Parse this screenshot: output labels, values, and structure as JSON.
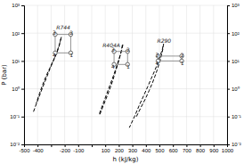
{
  "chart_data": {
    "type": "line",
    "xlabel": "h (kJ/kg)",
    "ylabel": "P (bar)",
    "log": "y",
    "grid": true,
    "xlim": [
      -500,
      1000
    ],
    "ylim": [
      0.01,
      1000
    ],
    "y2lim": [
      0.01,
      1000
    ],
    "xticks": [
      -500,
      -400,
      {
        "value": -300,
        "label": null
      },
      -200,
      -100,
      {
        "value": 0,
        "label": null
      },
      100,
      200,
      300,
      400,
      500,
      600,
      700,
      800,
      900,
      1000
    ],
    "yticks": [
      {
        "value": 0.01,
        "label": "10⁻²"
      },
      {
        "value": 0.1,
        "label": "10⁻¹"
      },
      {
        "value": 1.0,
        "label": "10⁰"
      },
      {
        "value": 10.0,
        "label": "10¹"
      },
      {
        "value": 100.0,
        "label": "10²"
      },
      {
        "value": 1000.0,
        "label": "10³"
      }
    ],
    "y2ticks": [
      {
        "value": 0.01,
        "label": "10⁻²"
      },
      {
        "value": 0.1,
        "label": "10⁻¹"
      },
      {
        "value": 1.0,
        "label": "10⁰"
      },
      {
        "value": 10.0,
        "label": "10¹"
      },
      {
        "value": 100.0,
        "label": "10²"
      },
      {
        "value": 1000.0,
        "label": "10³"
      }
    ],
    "series": [
      {
        "type": "line",
        "line_style": "dashed",
        "color": "#000000",
        "x": [
          -430,
          -410,
          -390,
          -370,
          -350,
          -330,
          -310,
          -290,
          -270,
          -255,
          -245,
          -237,
          -232,
          -228,
          -225,
          -224,
          -225,
          -228,
          -232,
          -238,
          -247,
          -258,
          -272,
          -290,
          -310,
          -335,
          -360,
          -385,
          -410
        ],
        "values": [
          0.15,
          0.28,
          0.5,
          0.9,
          1.6,
          2.8,
          5.0,
          8.5,
          14,
          21,
          30,
          40,
          52,
          63,
          72,
          74,
          70,
          62,
          52,
          41,
          30,
          21,
          14,
          9,
          5.5,
          3.0,
          1.5,
          0.7,
          0.3
        ]
      },
      {
        "type": "line",
        "line_style": "solid",
        "color": "#888888",
        "x": [
          -270,
          -270,
          -183,
          -155,
          -155,
          -270
        ],
        "values": [
          19.5,
          90,
          90,
          90,
          19.5,
          19.5
        ]
      },
      {
        "type": "scatter",
        "marker": "circle",
        "color": "#333333",
        "x": [
          -155,
          -155,
          -270,
          -270
        ],
        "values": [
          19.5,
          90,
          90,
          19.5
        ]
      },
      {
        "type": "line",
        "line_style": "dashed",
        "color": "#000000",
        "x": [
          60,
          90,
          120,
          145,
          165,
          182,
          196,
          207,
          215,
          220,
          224,
          227,
          229,
          230,
          229,
          226,
          221,
          214,
          205,
          193,
          178,
          160,
          138,
          113,
          85,
          55
        ],
        "values": [
          0.12,
          0.28,
          0.65,
          1.4,
          2.8,
          5.2,
          9.0,
          14,
          20,
          26,
          33,
          39,
          41,
          40,
          36,
          30,
          24,
          18,
          13,
          8.5,
          5.2,
          2.9,
          1.5,
          0.7,
          0.3,
          0.12
        ]
      },
      {
        "type": "line",
        "line_style": "solid",
        "color": "#888888",
        "x": [
          165,
          165,
          265,
          265,
          265,
          165
        ],
        "values": [
          7.5,
          22,
          22,
          22,
          7.5,
          7.5
        ]
      },
      {
        "type": "scatter",
        "marker": "circle",
        "color": "#333333",
        "x": [
          265,
          265,
          165,
          165
        ],
        "values": [
          7.5,
          22,
          22,
          7.5
        ]
      },
      {
        "type": "line",
        "line_style": "dashed",
        "color": "#000000",
        "x": [
          330,
          365,
          398,
          425,
          448,
          467,
          483,
          496,
          507,
          515,
          521,
          526,
          529,
          531,
          530,
          527,
          522,
          515,
          506,
          494,
          479,
          461,
          439,
          414,
          385,
          352,
          316,
          278
        ],
        "values": [
          0.1,
          0.22,
          0.45,
          0.88,
          1.6,
          2.8,
          4.7,
          7.5,
          11,
          16,
          21,
          28,
          35,
          41,
          40,
          34,
          27,
          21,
          15,
          10,
          6.5,
          4.0,
          2.3,
          1.2,
          0.58,
          0.26,
          0.1,
          0.04
        ]
      },
      {
        "type": "line",
        "line_style": "solid",
        "color": "#888888",
        "x": [
          490,
          490,
          620,
          665,
          665,
          490
        ],
        "values": [
          10,
          15,
          15,
          15,
          10,
          10
        ]
      },
      {
        "type": "scatter",
        "marker": "circle",
        "color": "#333333",
        "x": [
          665,
          665,
          490,
          490
        ],
        "values": [
          10,
          15,
          15,
          10
        ]
      }
    ],
    "annotations": [
      {
        "text": "1",
        "x": -151,
        "y": 16.575
      },
      {
        "text": "2",
        "x": -151,
        "y": 103.5
      },
      {
        "text": "3",
        "x": -277,
        "y": 103.5
      },
      {
        "text": "4",
        "x": -277,
        "y": 16.575
      },
      {
        "text": "R744",
        "x": -210,
        "y": 160
      },
      {
        "text": "1",
        "x": 269,
        "y": 6.375
      },
      {
        "text": "2",
        "x": 269,
        "y": 25.3
      },
      {
        "text": "3",
        "x": 158,
        "y": 25.3
      },
      {
        "text": "4",
        "x": 158,
        "y": 6.375
      },
      {
        "text": "R404A",
        "x": 145,
        "y": 38
      },
      {
        "text": "1",
        "x": 669,
        "y": 8.5
      },
      {
        "text": "2",
        "x": 669,
        "y": 17.25
      },
      {
        "text": "3",
        "x": 483,
        "y": 17.25
      },
      {
        "text": "4",
        "x": 483,
        "y": 8.5
      },
      {
        "text": "R290",
        "x": 535,
        "y": 55
      }
    ]
  }
}
